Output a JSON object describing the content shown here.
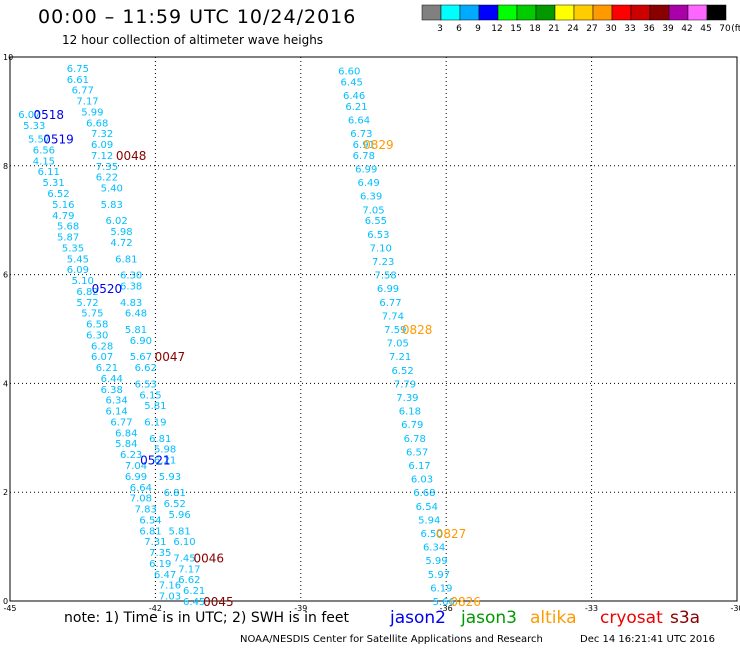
{
  "header": {
    "title": "00:00 – 11:59 UTC 10/24/2016",
    "subtitle": "12 hour collection of altimeter wave heighs"
  },
  "footer": {
    "note": "note: 1) Time is in UTC; 2) SWH is in feet",
    "credit": "NOAA/NESDIS Center for Satellite Applications and Research",
    "timestamp": "Dec 14 16:21:41 UTC 2016"
  },
  "satellites": [
    {
      "name": "jason2",
      "color": "#0000ee"
    },
    {
      "name": "jason3",
      "color": "#009900"
    },
    {
      "name": "altika",
      "color": "#ff9900"
    },
    {
      "name": "cryosat",
      "color": "#ee0000"
    },
    {
      "name": "s3a",
      "color": "#880000"
    }
  ],
  "chart_data": {
    "type": "scatter",
    "xlim": [
      -45,
      -30
    ],
    "ylim": [
      0,
      10
    ],
    "xticks": [
      "-45",
      "-42",
      "-39",
      "-36",
      "-33",
      "-30"
    ],
    "yticks": [
      "0",
      "2",
      "4",
      "6",
      "8",
      "10"
    ],
    "grid": true,
    "colorbar": {
      "unit": "(ft)",
      "labels": [
        "3",
        "6",
        "9",
        "12",
        "15",
        "18",
        "21",
        "24",
        "27",
        "30",
        "33",
        "36",
        "39",
        "42",
        "45",
        "70"
      ],
      "colors": [
        "#808080",
        "#00ffff",
        "#00aaff",
        "#0000ff",
        "#00ff00",
        "#00cc00",
        "#009900",
        "#ffff00",
        "#ffcc00",
        "#ff9900",
        "#ff0000",
        "#cc0000",
        "#880000",
        "#aa00aa",
        "#ff66ff",
        "#000000"
      ]
    },
    "tracks": [
      {
        "color": "#00bfff",
        "points": [
          {
            "x": -43.6,
            "y": 9.8,
            "v": "6.75"
          },
          {
            "x": -43.6,
            "y": 9.6,
            "v": "6.61"
          },
          {
            "x": -43.5,
            "y": 9.4,
            "v": "6.77"
          },
          {
            "x": -43.4,
            "y": 9.2,
            "v": "7.17"
          },
          {
            "x": -43.3,
            "y": 9.0,
            "v": "5.99"
          },
          {
            "x": -43.2,
            "y": 8.8,
            "v": "6.68"
          },
          {
            "x": -43.1,
            "y": 8.6,
            "v": "7.32"
          },
          {
            "x": -43.1,
            "y": 8.4,
            "v": "6.09"
          },
          {
            "x": -43.1,
            "y": 8.2,
            "v": "7.12"
          },
          {
            "x": -43.0,
            "y": 8.0,
            "v": "7.35"
          },
          {
            "x": -43.0,
            "y": 7.8,
            "v": "6.22"
          },
          {
            "x": -42.9,
            "y": 7.6,
            "v": "5.40"
          },
          {
            "x": -42.9,
            "y": 7.3,
            "v": "5.83"
          },
          {
            "x": -42.8,
            "y": 7.0,
            "v": "6.02"
          },
          {
            "x": -42.7,
            "y": 6.8,
            "v": "5.98"
          },
          {
            "x": -42.7,
            "y": 6.6,
            "v": "4.72"
          },
          {
            "x": -42.6,
            "y": 6.3,
            "v": "6.81"
          },
          {
            "x": -42.5,
            "y": 6.0,
            "v": "6.30"
          },
          {
            "x": -42.5,
            "y": 5.8,
            "v": "6.38"
          },
          {
            "x": -42.5,
            "y": 5.5,
            "v": "4.83"
          },
          {
            "x": -42.4,
            "y": 5.3,
            "v": "6.48"
          },
          {
            "x": -42.4,
            "y": 5.0,
            "v": "5.81"
          },
          {
            "x": -42.3,
            "y": 4.8,
            "v": "6.90"
          },
          {
            "x": -42.3,
            "y": 4.5,
            "v": "5.67"
          },
          {
            "x": -42.2,
            "y": 4.3,
            "v": "6.62"
          },
          {
            "x": -42.2,
            "y": 4.0,
            "v": "6.53"
          },
          {
            "x": -42.1,
            "y": 3.8,
            "v": "6.15"
          },
          {
            "x": -42.0,
            "y": 3.6,
            "v": "5.81"
          },
          {
            "x": -42.0,
            "y": 3.3,
            "v": "6.19"
          },
          {
            "x": -41.9,
            "y": 3.0,
            "v": "6.81"
          },
          {
            "x": -41.8,
            "y": 2.8,
            "v": "5.98"
          },
          {
            "x": -41.8,
            "y": 2.6,
            "v": "6.21"
          },
          {
            "x": -41.7,
            "y": 2.3,
            "v": "5.93"
          },
          {
            "x": -41.6,
            "y": 2.0,
            "v": "6.81"
          },
          {
            "x": -41.6,
            "y": 1.8,
            "v": "6.52"
          },
          {
            "x": -41.5,
            "y": 1.6,
            "v": "5.96"
          },
          {
            "x": -41.5,
            "y": 1.3,
            "v": "5.81"
          },
          {
            "x": -41.4,
            "y": 1.1,
            "v": "6.10"
          },
          {
            "x": -41.4,
            "y": 0.8,
            "v": "7.45"
          },
          {
            "x": -41.3,
            "y": 0.6,
            "v": "7.17"
          },
          {
            "x": -41.3,
            "y": 0.4,
            "v": "6.62"
          },
          {
            "x": -41.2,
            "y": 0.2,
            "v": "6.21"
          },
          {
            "x": -41.2,
            "y": 0.0,
            "v": "6.45"
          }
        ]
      },
      {
        "color": "#00bfff",
        "points": [
          {
            "x": -44.6,
            "y": 8.95,
            "v": "6.07"
          },
          {
            "x": -44.5,
            "y": 8.75,
            "v": "5.33"
          },
          {
            "x": -44.4,
            "y": 8.5,
            "v": "5.57"
          },
          {
            "x": -44.3,
            "y": 8.3,
            "v": "6.56"
          },
          {
            "x": -44.3,
            "y": 8.1,
            "v": "4.15"
          },
          {
            "x": -44.2,
            "y": 7.9,
            "v": "6.11"
          },
          {
            "x": -44.1,
            "y": 7.7,
            "v": "5.31"
          },
          {
            "x": -44.0,
            "y": 7.5,
            "v": "6.52"
          },
          {
            "x": -43.9,
            "y": 7.3,
            "v": "5.16"
          },
          {
            "x": -43.9,
            "y": 7.1,
            "v": "4.79"
          },
          {
            "x": -43.8,
            "y": 6.9,
            "v": "5.68"
          },
          {
            "x": -43.8,
            "y": 6.7,
            "v": "5.87"
          },
          {
            "x": -43.7,
            "y": 6.5,
            "v": "5.35"
          },
          {
            "x": -43.6,
            "y": 6.3,
            "v": "5.45"
          },
          {
            "x": -43.6,
            "y": 6.1,
            "v": "6.09"
          },
          {
            "x": -43.5,
            "y": 5.9,
            "v": "5.10"
          },
          {
            "x": -43.4,
            "y": 5.7,
            "v": "6.82"
          },
          {
            "x": -43.4,
            "y": 5.5,
            "v": "5.72"
          },
          {
            "x": -43.3,
            "y": 5.3,
            "v": "5.75"
          },
          {
            "x": -43.2,
            "y": 5.1,
            "v": "6.58"
          },
          {
            "x": -43.2,
            "y": 4.9,
            "v": "6.30"
          },
          {
            "x": -43.1,
            "y": 4.7,
            "v": "6.28"
          },
          {
            "x": -43.1,
            "y": 4.5,
            "v": "6.07"
          },
          {
            "x": -43.0,
            "y": 4.3,
            "v": "6.21"
          },
          {
            "x": -42.9,
            "y": 4.1,
            "v": "6.44"
          },
          {
            "x": -42.9,
            "y": 3.9,
            "v": "6.38"
          },
          {
            "x": -42.8,
            "y": 3.7,
            "v": "6.34"
          },
          {
            "x": -42.8,
            "y": 3.5,
            "v": "6.14"
          },
          {
            "x": -42.7,
            "y": 3.3,
            "v": "6.77"
          },
          {
            "x": -42.6,
            "y": 3.1,
            "v": "6.84"
          },
          {
            "x": -42.6,
            "y": 2.9,
            "v": "5.84"
          },
          {
            "x": -42.5,
            "y": 2.7,
            "v": "6.23"
          },
          {
            "x": -42.4,
            "y": 2.5,
            "v": "7.04"
          },
          {
            "x": -42.4,
            "y": 2.3,
            "v": "6.99"
          },
          {
            "x": -42.3,
            "y": 2.1,
            "v": "6.64"
          },
          {
            "x": -42.3,
            "y": 1.9,
            "v": "7.08"
          },
          {
            "x": -42.2,
            "y": 1.7,
            "v": "7.83"
          },
          {
            "x": -42.1,
            "y": 1.5,
            "v": "6.54"
          },
          {
            "x": -42.1,
            "y": 1.3,
            "v": "6.81"
          },
          {
            "x": -42.0,
            "y": 1.1,
            "v": "7.31"
          },
          {
            "x": -41.9,
            "y": 0.9,
            "v": "7.35"
          },
          {
            "x": -41.9,
            "y": 0.7,
            "v": "6.19"
          },
          {
            "x": -41.8,
            "y": 0.5,
            "v": "6.47"
          },
          {
            "x": -41.7,
            "y": 0.3,
            "v": "7.16"
          },
          {
            "x": -41.7,
            "y": 0.1,
            "v": "7.03"
          }
        ]
      },
      {
        "color": "#00bfff",
        "points": [
          {
            "x": -38.0,
            "y": 9.75,
            "v": "6.60"
          },
          {
            "x": -37.95,
            "y": 9.55,
            "v": "6.45"
          },
          {
            "x": -37.9,
            "y": 9.3,
            "v": "6.46"
          },
          {
            "x": -37.85,
            "y": 9.1,
            "v": "6.21"
          },
          {
            "x": -37.8,
            "y": 8.85,
            "v": "6.64"
          },
          {
            "x": -37.75,
            "y": 8.6,
            "v": "6.73"
          },
          {
            "x": -37.7,
            "y": 8.4,
            "v": "6.91"
          },
          {
            "x": -37.7,
            "y": 8.2,
            "v": "6.78"
          },
          {
            "x": -37.65,
            "y": 7.95,
            "v": "6.99"
          },
          {
            "x": -37.6,
            "y": 7.7,
            "v": "6.49"
          },
          {
            "x": -37.55,
            "y": 7.45,
            "v": "6.39"
          },
          {
            "x": -37.5,
            "y": 7.2,
            "v": "7.05"
          },
          {
            "x": -37.45,
            "y": 7.0,
            "v": "6.55"
          },
          {
            "x": -37.4,
            "y": 6.75,
            "v": "6.53"
          },
          {
            "x": -37.35,
            "y": 6.5,
            "v": "7.10"
          },
          {
            "x": -37.3,
            "y": 6.25,
            "v": "7.23"
          },
          {
            "x": -37.25,
            "y": 6.0,
            "v": "7.58"
          },
          {
            "x": -37.2,
            "y": 5.75,
            "v": "6.99"
          },
          {
            "x": -37.15,
            "y": 5.5,
            "v": "6.77"
          },
          {
            "x": -37.1,
            "y": 5.25,
            "v": "7.74"
          },
          {
            "x": -37.05,
            "y": 5.0,
            "v": "7.59"
          },
          {
            "x": -37.0,
            "y": 4.75,
            "v": "7.05"
          },
          {
            "x": -36.95,
            "y": 4.5,
            "v": "7.21"
          },
          {
            "x": -36.9,
            "y": 4.25,
            "v": "6.52"
          },
          {
            "x": -36.85,
            "y": 4.0,
            "v": "7.79"
          },
          {
            "x": -36.8,
            "y": 3.75,
            "v": "7.39"
          },
          {
            "x": -36.75,
            "y": 3.5,
            "v": "6.18"
          },
          {
            "x": -36.7,
            "y": 3.25,
            "v": "6.79"
          },
          {
            "x": -36.65,
            "y": 3.0,
            "v": "6.78"
          },
          {
            "x": -36.6,
            "y": 2.75,
            "v": "6.57"
          },
          {
            "x": -36.55,
            "y": 2.5,
            "v": "6.17"
          },
          {
            "x": -36.5,
            "y": 2.25,
            "v": "6.03"
          },
          {
            "x": -36.45,
            "y": 2.0,
            "v": "6.68"
          },
          {
            "x": -36.4,
            "y": 1.75,
            "v": "6.54"
          },
          {
            "x": -36.35,
            "y": 1.5,
            "v": "5.94"
          },
          {
            "x": -36.3,
            "y": 1.25,
            "v": "6.50"
          },
          {
            "x": -36.25,
            "y": 1.0,
            "v": "6.34"
          },
          {
            "x": -36.2,
            "y": 0.75,
            "v": "5.99"
          },
          {
            "x": -36.15,
            "y": 0.5,
            "v": "5.97"
          },
          {
            "x": -36.1,
            "y": 0.25,
            "v": "6.19"
          },
          {
            "x": -36.05,
            "y": 0.0,
            "v": "5.66"
          }
        ]
      }
    ],
    "time_labels": [
      {
        "text": "0518",
        "color": "#0000ee",
        "x": -44.2,
        "y": 8.95
      },
      {
        "text": "0519",
        "color": "#0000ee",
        "x": -44.0,
        "y": 8.5
      },
      {
        "text": "0520",
        "color": "#0000ee",
        "x": -43.0,
        "y": 5.75
      },
      {
        "text": "0521",
        "color": "#0000ee",
        "x": -42.0,
        "y": 2.6
      },
      {
        "text": "0048",
        "color": "#880000",
        "x": -42.5,
        "y": 8.2
      },
      {
        "text": "0047",
        "color": "#880000",
        "x": -41.7,
        "y": 4.5
      },
      {
        "text": "0046",
        "color": "#880000",
        "x": -40.9,
        "y": 0.8
      },
      {
        "text": "0045",
        "color": "#880000",
        "x": -40.7,
        "y": 0.0
      },
      {
        "text": "0829",
        "color": "#ff9900",
        "x": -37.4,
        "y": 8.4
      },
      {
        "text": "0828",
        "color": "#ff9900",
        "x": -36.6,
        "y": 5.0
      },
      {
        "text": "0827",
        "color": "#ff9900",
        "x": -35.9,
        "y": 1.25
      },
      {
        "text": "0826",
        "color": "#ff9900",
        "x": -35.6,
        "y": 0.0
      }
    ]
  }
}
